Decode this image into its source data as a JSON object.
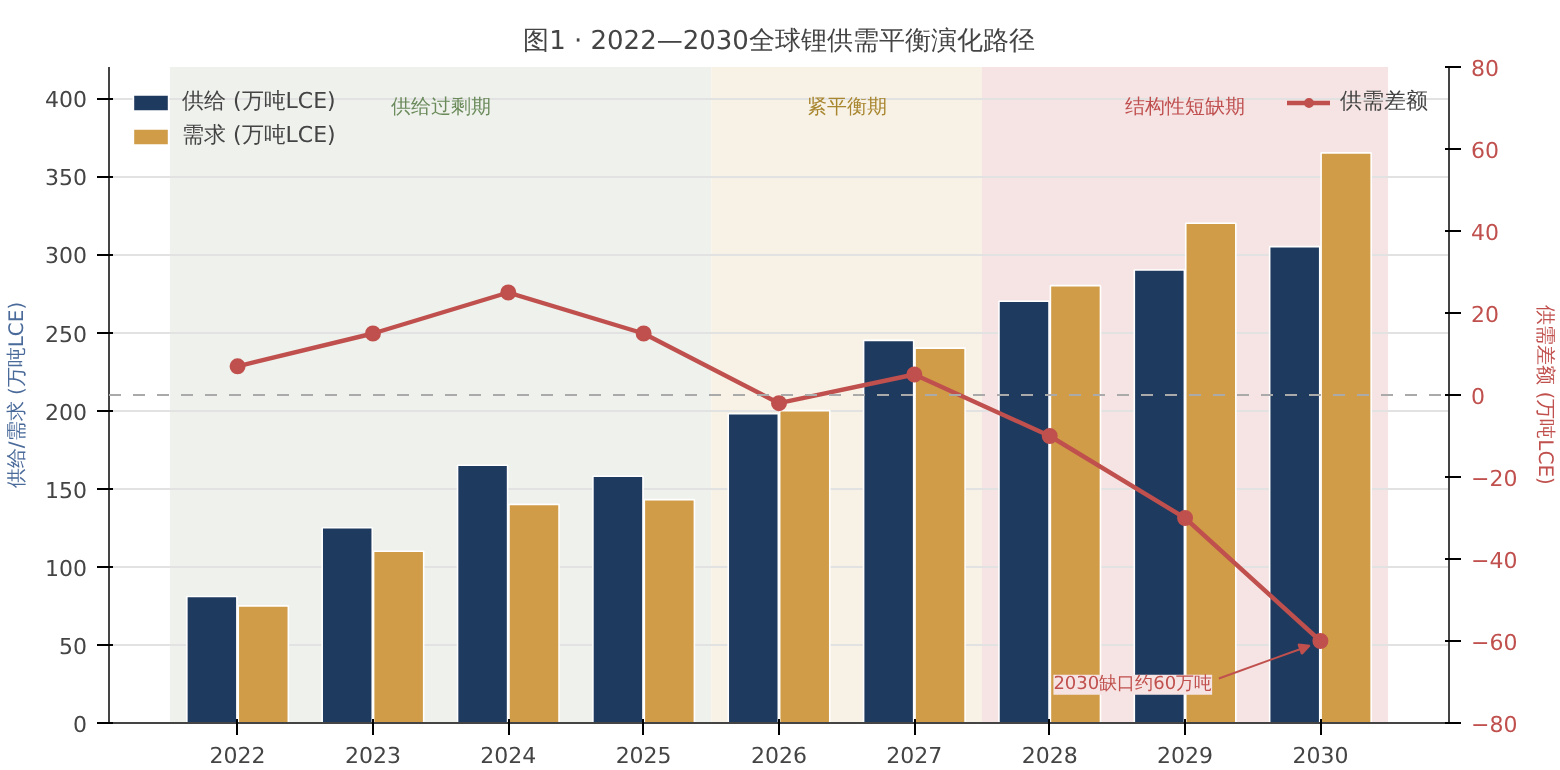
{
  "chart_data": {
    "type": "bar",
    "title": "图1 · 2022—2030全球锂供需平衡演化路径",
    "x": [
      2022,
      2023,
      2024,
      2025,
      2026,
      2027,
      2028,
      2029,
      2030
    ],
    "xlim": [
      2021.05,
      2030.95
    ],
    "xticks": [
      2022,
      2023,
      2024,
      2025,
      2026,
      2027,
      2028,
      2029,
      2030
    ],
    "ylabel": "供给/需求 (万吨LCE)",
    "y2label": "供需差额 (万吨LCE)",
    "ylim": [
      0,
      420
    ],
    "yticks": [
      0,
      50,
      100,
      150,
      200,
      250,
      300,
      350,
      400
    ],
    "y2lim": [
      -80,
      80
    ],
    "y2ticks": [
      -80,
      -60,
      -40,
      -20,
      0,
      20,
      40,
      60,
      80
    ],
    "series": [
      {
        "name": "供给 (万吨LCE)",
        "color": "#1f3a5f",
        "values": [
          81,
          125,
          165,
          158,
          198,
          245,
          270,
          290,
          305
        ]
      },
      {
        "name": "需求 (万吨LCE)",
        "color": "#d09c48",
        "values": [
          75,
          110,
          140,
          143,
          200,
          240,
          280,
          320,
          365
        ]
      },
      {
        "name": "供需差额",
        "type": "line",
        "axis": "y2",
        "color": "#c0504d",
        "marker": "circle",
        "line_style": "solid",
        "values": [
          7,
          15,
          25,
          15,
          -2,
          5,
          -10,
          -30,
          -60
        ]
      }
    ],
    "bands": [
      {
        "axis": "x",
        "from": 2021.5,
        "to": 2025.5,
        "label": "供给过剩期",
        "color": "#eef1ec"
      },
      {
        "axis": "x",
        "from": 2025.5,
        "to": 2027.5,
        "label": "紧平衡期",
        "color": "#f8f2e6"
      },
      {
        "axis": "x",
        "from": 2027.5,
        "to": 2030.5,
        "label": "结构性短缺期",
        "color": "#f6e4e4"
      }
    ],
    "ref_lines": [
      {
        "axis": "y2",
        "value": 0,
        "label": null,
        "color": "#aaaaaa",
        "line_style": "dashed"
      }
    ],
    "annotations": [
      {
        "text": "2030缺口约60万吨",
        "x": 2030,
        "y": 52.5
      }
    ],
    "grid": "y",
    "legend": "top left"
  }
}
